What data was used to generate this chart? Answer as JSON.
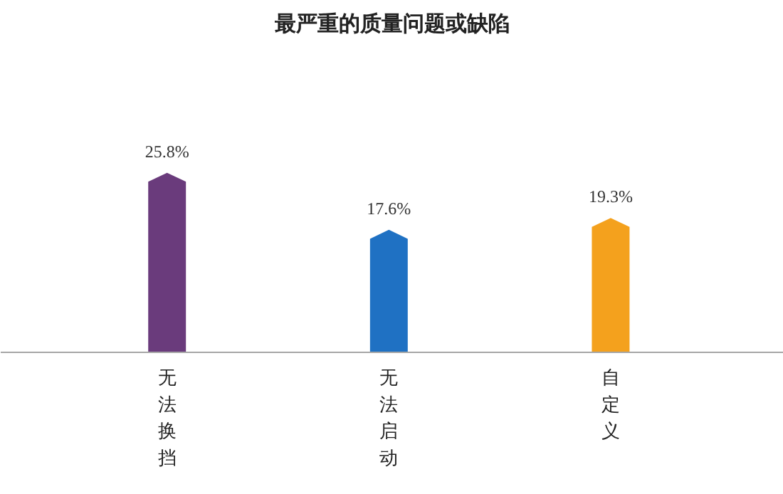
{
  "chart_data": {
    "type": "bar",
    "title": "最严重的质量问题或缺陷",
    "categories": [
      "无法换挡",
      "无法启动",
      "自定义"
    ],
    "values": [
      25.8,
      17.6,
      19.3
    ],
    "colors": [
      "#6a3b7c",
      "#1f71c3",
      "#f4a11d"
    ],
    "value_labels": [
      "25.8%",
      "17.6%",
      "19.3%"
    ]
  }
}
